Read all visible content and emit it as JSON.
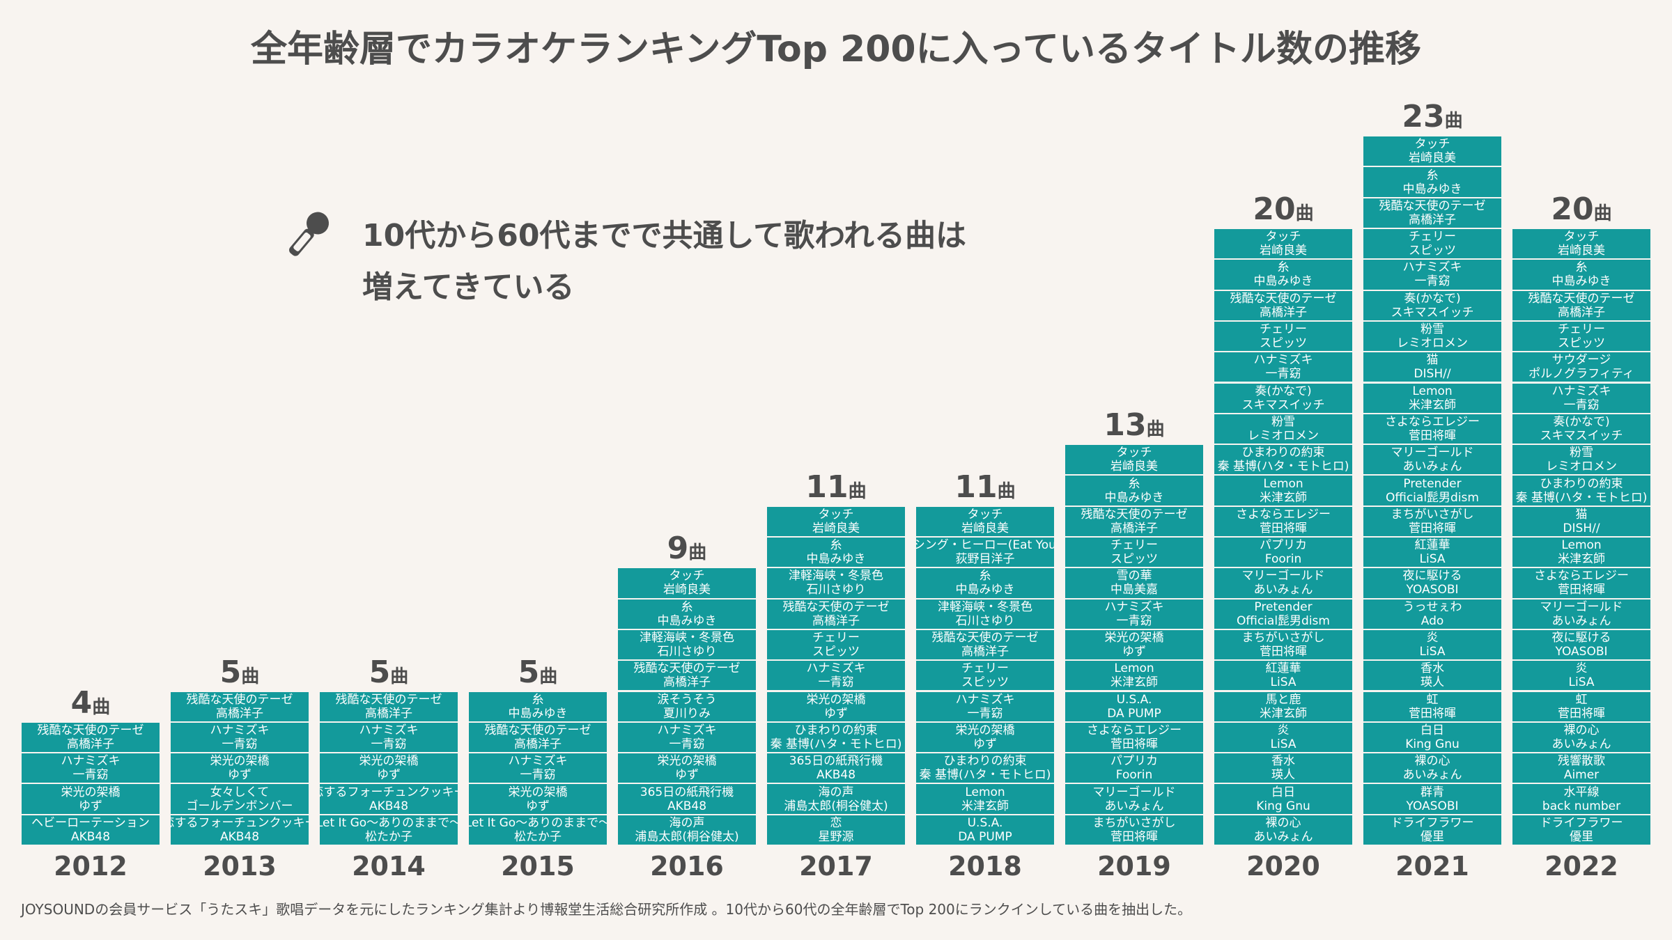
{
  "title": "全年齢層でカラオケランキングTop 200に入っているタイトル数の推移",
  "headline": {
    "line1": "10代から60代までで共通して歌われる曲は",
    "line2": "増えてきている"
  },
  "icon": "microphone-icon",
  "footnote": "JOYSOUNDの会員サービス「うたスキ」歌唱データを元にしたランキング集計より博報堂生活総合研究所作成 。10代から60代の全年齢層でTop 200にランクインしている曲を抽出した。",
  "colors": {
    "bar": "#139a9b",
    "text": "#4d4d4d",
    "background": "#f8f4f0"
  },
  "chart_data": {
    "type": "bar",
    "title": "全年齢層でカラオケランキングTop 200に入っているタイトル数の推移",
    "count_suffix": "曲",
    "categories": [
      "2012",
      "2013",
      "2014",
      "2015",
      "2016",
      "2017",
      "2018",
      "2019",
      "2020",
      "2021",
      "2022"
    ],
    "values": [
      4,
      5,
      5,
      5,
      9,
      11,
      11,
      13,
      20,
      23,
      20
    ],
    "years": [
      {
        "year": "2012",
        "count": 4,
        "songs": [
          {
            "t": "残酷な天使のテーゼ",
            "a": "高橋洋子"
          },
          {
            "t": "ハナミズキ",
            "a": "一青窈"
          },
          {
            "t": "栄光の架橋",
            "a": "ゆず"
          },
          {
            "t": "ヘビーローテーション",
            "a": "AKB48"
          }
        ]
      },
      {
        "year": "2013",
        "count": 5,
        "songs": [
          {
            "t": "残酷な天使のテーゼ",
            "a": "高橋洋子"
          },
          {
            "t": "ハナミズキ",
            "a": "一青窈"
          },
          {
            "t": "栄光の架橋",
            "a": "ゆず"
          },
          {
            "t": "女々しくて",
            "a": "ゴールデンボンバー"
          },
          {
            "t": "恋するフォーチュンクッキー",
            "a": "AKB48"
          }
        ]
      },
      {
        "year": "2014",
        "count": 5,
        "songs": [
          {
            "t": "残酷な天使のテーゼ",
            "a": "高橋洋子"
          },
          {
            "t": "ハナミズキ",
            "a": "一青窈"
          },
          {
            "t": "栄光の架橋",
            "a": "ゆず"
          },
          {
            "t": "恋するフォーチュンクッキー",
            "a": "AKB48"
          },
          {
            "t": "Let It Go～ありのままで～",
            "a": "松たか子"
          }
        ]
      },
      {
        "year": "2015",
        "count": 5,
        "songs": [
          {
            "t": "糸",
            "a": "中島みゆき"
          },
          {
            "t": "残酷な天使のテーゼ",
            "a": "高橋洋子"
          },
          {
            "t": "ハナミズキ",
            "a": "一青窈"
          },
          {
            "t": "栄光の架橋",
            "a": "ゆず"
          },
          {
            "t": "Let It Go～ありのままで～",
            "a": "松たか子"
          }
        ]
      },
      {
        "year": "2016",
        "count": 9,
        "songs": [
          {
            "t": "タッチ",
            "a": "岩崎良美"
          },
          {
            "t": "糸",
            "a": "中島みゆき"
          },
          {
            "t": "津軽海峡・冬景色",
            "a": "石川さゆり"
          },
          {
            "t": "残酷な天使のテーゼ",
            "a": "高橋洋子"
          },
          {
            "t": "涙そうそう",
            "a": "夏川りみ"
          },
          {
            "t": "ハナミズキ",
            "a": "一青窈"
          },
          {
            "t": "栄光の架橋",
            "a": "ゆず"
          },
          {
            "t": "365日の紙飛行機",
            "a": "AKB48"
          },
          {
            "t": "海の声",
            "a": "浦島太郎(桐谷健太)"
          }
        ]
      },
      {
        "year": "2017",
        "count": 11,
        "songs": [
          {
            "t": "タッチ",
            "a": "岩崎良美"
          },
          {
            "t": "糸",
            "a": "中島みゆき"
          },
          {
            "t": "津軽海峡・冬景色",
            "a": "石川さゆり"
          },
          {
            "t": "残酷な天使のテーゼ",
            "a": "高橋洋子"
          },
          {
            "t": "チェリー",
            "a": "スピッツ"
          },
          {
            "t": "ハナミズキ",
            "a": "一青窈"
          },
          {
            "t": "栄光の架橋",
            "a": "ゆず"
          },
          {
            "t": "ひまわりの約束",
            "a": "秦 基博(ハタ・モトヒロ)"
          },
          {
            "t": "365日の紙飛行機",
            "a": "AKB48"
          },
          {
            "t": "海の声",
            "a": "浦島太郎(桐谷健太)"
          },
          {
            "t": "恋",
            "a": "星野源"
          }
        ]
      },
      {
        "year": "2018",
        "count": 11,
        "songs": [
          {
            "t": "タッチ",
            "a": "岩崎良美"
          },
          {
            "t": "ダンシング・ヒーロー(Eat You Up)",
            "a": "荻野目洋子"
          },
          {
            "t": "糸",
            "a": "中島みゆき"
          },
          {
            "t": "津軽海峡・冬景色",
            "a": "石川さゆり"
          },
          {
            "t": "残酷な天使のテーゼ",
            "a": "高橋洋子"
          },
          {
            "t": "チェリー",
            "a": "スピッツ"
          },
          {
            "t": "ハナミズキ",
            "a": "一青窈"
          },
          {
            "t": "栄光の架橋",
            "a": "ゆず"
          },
          {
            "t": "ひまわりの約束",
            "a": "秦 基博(ハタ・モトヒロ)"
          },
          {
            "t": "Lemon",
            "a": "米津玄師"
          },
          {
            "t": "U.S.A.",
            "a": "DA PUMP"
          }
        ]
      },
      {
        "year": "2019",
        "count": 13,
        "songs": [
          {
            "t": "タッチ",
            "a": "岩崎良美"
          },
          {
            "t": "糸",
            "a": "中島みゆき"
          },
          {
            "t": "残酷な天使のテーゼ",
            "a": "高橋洋子"
          },
          {
            "t": "チェリー",
            "a": "スピッツ"
          },
          {
            "t": "雪の華",
            "a": "中島美嘉"
          },
          {
            "t": "ハナミズキ",
            "a": "一青窈"
          },
          {
            "t": "栄光の架橋",
            "a": "ゆず"
          },
          {
            "t": "Lemon",
            "a": "米津玄師"
          },
          {
            "t": "U.S.A.",
            "a": "DA PUMP"
          },
          {
            "t": "さよならエレジー",
            "a": "菅田将暉"
          },
          {
            "t": "パプリカ",
            "a": "Foorin"
          },
          {
            "t": "マリーゴールド",
            "a": "あいみょん"
          },
          {
            "t": "まちがいさがし",
            "a": "菅田将暉"
          }
        ]
      },
      {
        "year": "2020",
        "count": 20,
        "songs": [
          {
            "t": "タッチ",
            "a": "岩崎良美"
          },
          {
            "t": "糸",
            "a": "中島みゆき"
          },
          {
            "t": "残酷な天使のテーゼ",
            "a": "高橋洋子"
          },
          {
            "t": "チェリー",
            "a": "スピッツ"
          },
          {
            "t": "ハナミズキ",
            "a": "一青窈"
          },
          {
            "t": "奏(かなで)",
            "a": "スキマスイッチ"
          },
          {
            "t": "粉雪",
            "a": "レミオロメン"
          },
          {
            "t": "ひまわりの約束",
            "a": "秦 基博(ハタ・モトヒロ)"
          },
          {
            "t": "Lemon",
            "a": "米津玄師"
          },
          {
            "t": "さよならエレジー",
            "a": "菅田将暉"
          },
          {
            "t": "パプリカ",
            "a": "Foorin"
          },
          {
            "t": "マリーゴールド",
            "a": "あいみょん"
          },
          {
            "t": "Pretender",
            "a": "Official髭男dism"
          },
          {
            "t": "まちがいさがし",
            "a": "菅田将暉"
          },
          {
            "t": "紅蓮華",
            "a": "LiSA"
          },
          {
            "t": "馬と鹿",
            "a": "米津玄師"
          },
          {
            "t": "炎",
            "a": "LiSA"
          },
          {
            "t": "香水",
            "a": "瑛人"
          },
          {
            "t": "白日",
            "a": "King Gnu"
          },
          {
            "t": "裸の心",
            "a": "あいみょん"
          }
        ]
      },
      {
        "year": "2021",
        "count": 23,
        "songs": [
          {
            "t": "タッチ",
            "a": "岩崎良美"
          },
          {
            "t": "糸",
            "a": "中島みゆき"
          },
          {
            "t": "残酷な天使のテーゼ",
            "a": "高橋洋子"
          },
          {
            "t": "チェリー",
            "a": "スピッツ"
          },
          {
            "t": "ハナミズキ",
            "a": "一青窈"
          },
          {
            "t": "奏(かなで)",
            "a": "スキマスイッチ"
          },
          {
            "t": "粉雪",
            "a": "レミオロメン"
          },
          {
            "t": "猫",
            "a": "DISH//"
          },
          {
            "t": "Lemon",
            "a": "米津玄師"
          },
          {
            "t": "さよならエレジー",
            "a": "菅田将暉"
          },
          {
            "t": "マリーゴールド",
            "a": "あいみょん"
          },
          {
            "t": "Pretender",
            "a": "Official髭男dism"
          },
          {
            "t": "まちがいさがし",
            "a": "菅田将暉"
          },
          {
            "t": "紅蓮華",
            "a": "LiSA"
          },
          {
            "t": "夜に駆ける",
            "a": "YOASOBI"
          },
          {
            "t": "うっせぇわ",
            "a": "Ado"
          },
          {
            "t": "炎",
            "a": "LiSA"
          },
          {
            "t": "香水",
            "a": "瑛人"
          },
          {
            "t": "虹",
            "a": "菅田将暉"
          },
          {
            "t": "白日",
            "a": "King Gnu"
          },
          {
            "t": "裸の心",
            "a": "あいみょん"
          },
          {
            "t": "群青",
            "a": "YOASOBI"
          },
          {
            "t": "ドライフラワー",
            "a": "優里"
          }
        ]
      },
      {
        "year": "2022",
        "count": 20,
        "songs": [
          {
            "t": "タッチ",
            "a": "岩崎良美"
          },
          {
            "t": "糸",
            "a": "中島みゆき"
          },
          {
            "t": "残酷な天使のテーゼ",
            "a": "高橋洋子"
          },
          {
            "t": "チェリー",
            "a": "スピッツ"
          },
          {
            "t": "サウダージ",
            "a": "ポルノグラフィティ"
          },
          {
            "t": "ハナミズキ",
            "a": "一青窈"
          },
          {
            "t": "奏(かなで)",
            "a": "スキマスイッチ"
          },
          {
            "t": "粉雪",
            "a": "レミオロメン"
          },
          {
            "t": "ひまわりの約束",
            "a": "秦 基博(ハタ・モトヒロ)"
          },
          {
            "t": "猫",
            "a": "DISH//"
          },
          {
            "t": "Lemon",
            "a": "米津玄師"
          },
          {
            "t": "さよならエレジー",
            "a": "菅田将暉"
          },
          {
            "t": "マリーゴールド",
            "a": "あいみょん"
          },
          {
            "t": "夜に駆ける",
            "a": "YOASOBI"
          },
          {
            "t": "炎",
            "a": "LiSA"
          },
          {
            "t": "虹",
            "a": "菅田将暉"
          },
          {
            "t": "裸の心",
            "a": "あいみょん"
          },
          {
            "t": "残響散歌",
            "a": "Aimer"
          },
          {
            "t": "水平線",
            "a": "back number"
          },
          {
            "t": "ドライフラワー",
            "a": "優里"
          }
        ]
      }
    ]
  }
}
